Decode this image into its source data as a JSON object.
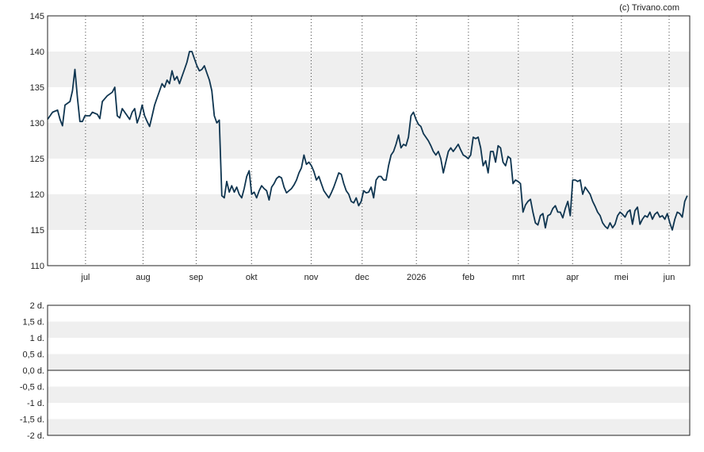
{
  "credit": "(c) Trivano.com",
  "colors": {
    "line": "#0f3550",
    "band": "#efefef",
    "frame": "#222222",
    "grid": "#444444"
  },
  "chart_data": [
    {
      "type": "line",
      "title": "",
      "xlabel": "",
      "ylabel": "",
      "ylim": [
        110,
        145
      ],
      "yticks": [
        110,
        115,
        120,
        125,
        130,
        135,
        140,
        145
      ],
      "grid": "dotted vertical lines at month starts, alternating horizontal bands",
      "x_tick_labels": [
        "jul",
        "aug",
        "sep",
        "okt",
        "nov",
        "dec",
        "2026",
        "feb",
        "mrt",
        "apr",
        "mei",
        "jun"
      ],
      "x_tick_positions": [
        35,
        88,
        137,
        188,
        243,
        290,
        340,
        388,
        434,
        484,
        529,
        573
      ],
      "x_range": [
        0,
        592
      ],
      "series": [
        {
          "name": "",
          "points": [
            [
              0,
              130.5
            ],
            [
              2,
              131.5
            ],
            [
              4,
              131.8
            ],
            [
              5,
              130.5
            ],
            [
              6,
              129.6
            ],
            [
              7,
              132.5
            ],
            [
              9,
              133.0
            ],
            [
              10,
              134.5
            ],
            [
              11,
              137.5
            ],
            [
              12,
              133.5
            ],
            [
              13,
              130.2
            ],
            [
              14,
              130.2
            ],
            [
              15,
              131.0
            ],
            [
              17,
              131.0
            ],
            [
              18,
              131.5
            ],
            [
              20,
              131.2
            ],
            [
              21,
              130.6
            ],
            [
              22,
              133.0
            ],
            [
              24,
              133.8
            ],
            [
              26,
              134.3
            ],
            [
              27,
              135.0
            ],
            [
              28,
              131.0
            ],
            [
              29,
              130.7
            ],
            [
              30,
              132.0
            ],
            [
              32,
              131.0
            ],
            [
              33,
              130.5
            ],
            [
              34,
              131.5
            ],
            [
              35,
              132.0
            ],
            [
              36,
              130.0
            ],
            [
              37,
              131.0
            ],
            [
              38,
              132.5
            ],
            [
              39,
              131.0
            ],
            [
              40,
              130.2
            ],
            [
              41,
              129.5
            ],
            [
              42,
              131.0
            ],
            [
              43,
              132.5
            ],
            [
              44,
              133.5
            ],
            [
              45,
              134.5
            ],
            [
              46,
              135.5
            ],
            [
              47,
              135.0
            ],
            [
              48,
              136.0
            ],
            [
              49,
              135.5
            ],
            [
              50,
              137.3
            ],
            [
              51,
              136.0
            ],
            [
              52,
              136.5
            ],
            [
              53,
              135.5
            ],
            [
              54,
              136.5
            ],
            [
              55,
              137.5
            ],
            [
              56,
              138.5
            ],
            [
              57,
              140.0
            ],
            [
              58,
              140.0
            ],
            [
              59,
              139.0
            ],
            [
              60,
              138.0
            ],
            [
              61,
              137.3
            ],
            [
              62,
              137.5
            ],
            [
              63,
              138.0
            ],
            [
              64,
              137.0
            ],
            [
              65,
              136.0
            ],
            [
              66,
              134.5
            ],
            [
              67,
              131.0
            ],
            [
              68,
              130.0
            ],
            [
              69,
              130.4
            ],
            [
              70,
              119.8
            ],
            [
              71,
              119.5
            ],
            [
              72,
              121.8
            ],
            [
              73,
              120.3
            ],
            [
              74,
              121.2
            ],
            [
              75,
              120.3
            ],
            [
              76,
              121.0
            ],
            [
              77,
              120.0
            ],
            [
              78,
              119.5
            ],
            [
              79,
              120.8
            ],
            [
              80,
              122.5
            ],
            [
              81,
              123.3
            ],
            [
              82,
              120.0
            ],
            [
              83,
              120.3
            ],
            [
              84,
              119.5
            ],
            [
              85,
              120.5
            ],
            [
              86,
              121.2
            ],
            [
              87,
              120.8
            ],
            [
              88,
              120.5
            ],
            [
              89,
              119.2
            ],
            [
              90,
              121.0
            ],
            [
              91,
              121.5
            ],
            [
              92,
              122.2
            ],
            [
              93,
              122.5
            ],
            [
              94,
              122.3
            ],
            [
              95,
              121.0
            ],
            [
              96,
              120.2
            ],
            [
              97,
              120.5
            ],
            [
              98,
              120.8
            ],
            [
              99,
              121.3
            ],
            [
              100,
              122.0
            ],
            [
              101,
              123.0
            ],
            [
              102,
              123.7
            ],
            [
              103,
              125.5
            ],
            [
              104,
              124.2
            ],
            [
              105,
              124.5
            ],
            [
              106,
              124.0
            ],
            [
              107,
              123.2
            ],
            [
              108,
              122.0
            ],
            [
              109,
              122.5
            ],
            [
              110,
              121.5
            ],
            [
              111,
              120.5
            ],
            [
              112,
              120.0
            ],
            [
              113,
              119.5
            ],
            [
              114,
              120.2
            ],
            [
              115,
              121.0
            ],
            [
              116,
              122.0
            ],
            [
              117,
              123.0
            ],
            [
              118,
              122.8
            ],
            [
              119,
              121.5
            ],
            [
              120,
              120.5
            ],
            [
              121,
              120.0
            ],
            [
              122,
              119.0
            ],
            [
              123,
              118.8
            ],
            [
              124,
              119.5
            ],
            [
              125,
              118.4
            ],
            [
              126,
              119.0
            ],
            [
              127,
              120.5
            ],
            [
              128,
              120.2
            ],
            [
              129,
              120.3
            ],
            [
              130,
              121.0
            ],
            [
              131,
              119.5
            ],
            [
              132,
              122.0
            ],
            [
              133,
              122.5
            ],
            [
              134,
              122.5
            ],
            [
              135,
              122.0
            ],
            [
              136,
              122.0
            ],
            [
              137,
              124.0
            ],
            [
              138,
              125.5
            ],
            [
              139,
              126.0
            ],
            [
              140,
              127.0
            ],
            [
              141,
              128.3
            ],
            [
              142,
              126.5
            ],
            [
              143,
              127.0
            ],
            [
              144,
              126.8
            ],
            [
              145,
              128.0
            ],
            [
              146,
              131.0
            ],
            [
              147,
              131.5
            ],
            [
              148,
              130.5
            ],
            [
              149,
              129.8
            ],
            [
              150,
              129.5
            ],
            [
              151,
              128.5
            ],
            [
              152,
              128.0
            ],
            [
              153,
              127.5
            ],
            [
              154,
              126.8
            ],
            [
              155,
              126.0
            ],
            [
              156,
              125.5
            ],
            [
              157,
              126.0
            ],
            [
              158,
              125.0
            ],
            [
              159,
              123.0
            ],
            [
              160,
              124.5
            ],
            [
              161,
              126.0
            ],
            [
              162,
              126.5
            ],
            [
              163,
              126.0
            ],
            [
              164,
              126.5
            ],
            [
              165,
              127.0
            ],
            [
              166,
              126.2
            ],
            [
              167,
              125.5
            ],
            [
              168,
              125.3
            ],
            [
              169,
              125.0
            ],
            [
              170,
              125.5
            ],
            [
              171,
              128.0
            ],
            [
              172,
              127.8
            ],
            [
              173,
              128.0
            ],
            [
              174,
              126.5
            ],
            [
              175,
              124.0
            ],
            [
              176,
              124.7
            ],
            [
              177,
              123.0
            ],
            [
              178,
              126.0
            ],
            [
              179,
              126.0
            ],
            [
              180,
              124.5
            ],
            [
              181,
              126.8
            ],
            [
              182,
              126.5
            ],
            [
              183,
              124.5
            ],
            [
              184,
              124.0
            ],
            [
              185,
              125.3
            ],
            [
              186,
              125.0
            ],
            [
              187,
              121.5
            ],
            [
              188,
              122.0
            ],
            [
              189,
              121.8
            ],
            [
              190,
              121.5
            ],
            [
              191,
              117.5
            ],
            [
              192,
              118.5
            ],
            [
              193,
              119.0
            ],
            [
              194,
              119.3
            ],
            [
              195,
              117.5
            ],
            [
              196,
              116.0
            ],
            [
              197,
              115.7
            ],
            [
              198,
              117.0
            ],
            [
              199,
              117.3
            ],
            [
              200,
              115.3
            ],
            [
              201,
              117.0
            ],
            [
              202,
              117.2
            ],
            [
              203,
              118.0
            ],
            [
              204,
              118.4
            ],
            [
              205,
              117.5
            ],
            [
              206,
              117.5
            ],
            [
              207,
              116.7
            ],
            [
              208,
              118.0
            ],
            [
              209,
              119.0
            ],
            [
              210,
              117.0
            ],
            [
              211,
              122.0
            ],
            [
              212,
              122.0
            ],
            [
              213,
              121.8
            ],
            [
              214,
              122.0
            ],
            [
              215,
              120.0
            ],
            [
              216,
              121.0
            ],
            [
              217,
              120.5
            ],
            [
              218,
              120.0
            ],
            [
              219,
              119.0
            ],
            [
              220,
              118.3
            ],
            [
              221,
              117.5
            ],
            [
              222,
              117.0
            ],
            [
              223,
              116.0
            ],
            [
              224,
              115.5
            ],
            [
              225,
              115.2
            ],
            [
              226,
              116.0
            ],
            [
              227,
              115.3
            ],
            [
              228,
              115.8
            ],
            [
              229,
              117.0
            ],
            [
              230,
              117.5
            ],
            [
              231,
              117.2
            ],
            [
              232,
              116.8
            ],
            [
              233,
              117.5
            ],
            [
              234,
              117.8
            ],
            [
              235,
              115.8
            ],
            [
              236,
              117.7
            ],
            [
              237,
              118.2
            ],
            [
              238,
              115.8
            ],
            [
              239,
              116.5
            ],
            [
              240,
              117.0
            ],
            [
              241,
              116.8
            ],
            [
              242,
              117.5
            ],
            [
              243,
              116.5
            ],
            [
              244,
              117.2
            ],
            [
              245,
              117.5
            ],
            [
              246,
              116.8
            ],
            [
              247,
              117.0
            ],
            [
              248,
              116.5
            ],
            [
              249,
              117.3
            ],
            [
              250,
              116.0
            ],
            [
              251,
              115.0
            ],
            [
              252,
              116.5
            ],
            [
              253,
              117.5
            ],
            [
              254,
              117.3
            ],
            [
              255,
              116.8
            ],
            [
              256,
              119.0
            ],
            [
              257,
              119.8
            ]
          ]
        }
      ]
    },
    {
      "type": "line",
      "title": "",
      "xlabel": "",
      "ylabel": "",
      "ylim": [
        -2,
        2
      ],
      "yticks": [
        -2,
        -1.5,
        -1,
        -0.5,
        0,
        0.5,
        1,
        1.5,
        2
      ],
      "ytick_labels": [
        "-2 d.",
        "-1,5 d.",
        "-1 d.",
        "-0,5 d.",
        "0,0 d.",
        "0,5 d.",
        "1 d.",
        "1,5 d.",
        "2 d."
      ],
      "zero_line": 0,
      "grid": "alternating horizontal bands",
      "series": []
    }
  ]
}
